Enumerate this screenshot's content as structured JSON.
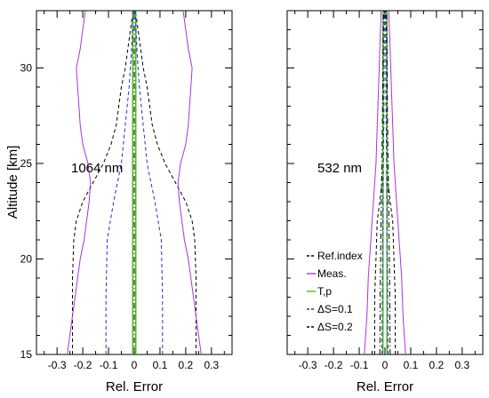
{
  "chart_data": [
    {
      "type": "line",
      "title": "",
      "annotation": "1064 nm",
      "xlabel": "Rel. Error",
      "ylabel": "Altitude [km]",
      "xlim": [
        -0.38,
        0.38
      ],
      "ylim": [
        15,
        33
      ],
      "xticks": [
        -0.3,
        -0.2,
        -0.1,
        0,
        0.1,
        0.2,
        0.3
      ],
      "xtick_labels": [
        "-0.3",
        "-0.2",
        "-0.1",
        "0",
        "0.1",
        "0.2",
        "0.3"
      ],
      "yticks": [
        15,
        20,
        25,
        30
      ],
      "ytick_labels": [
        "15",
        "20",
        "25",
        "30"
      ],
      "grid": false,
      "series": [
        {
          "name": "Ref.index",
          "color": "#000000",
          "dash": "dashed",
          "mirror": true,
          "y": [
            15,
            17,
            19,
            21,
            22,
            23,
            24,
            25,
            26,
            27,
            28,
            29,
            30,
            31,
            32,
            33
          ],
          "x": [
            0.24,
            0.24,
            0.24,
            0.235,
            0.225,
            0.2,
            0.16,
            0.12,
            0.09,
            0.07,
            0.06,
            0.05,
            0.035,
            0.025,
            0.015,
            0.005
          ]
        },
        {
          "name": "Meas.",
          "color": "#aa33dd",
          "dash": "solid",
          "mirror": true,
          "y": [
            15,
            16,
            17,
            18,
            19,
            20,
            21,
            22,
            23,
            24,
            25,
            26,
            27,
            28,
            29,
            30,
            31,
            32,
            33
          ],
          "x": [
            0.26,
            0.25,
            0.24,
            0.23,
            0.22,
            0.21,
            0.195,
            0.185,
            0.175,
            0.17,
            0.18,
            0.2,
            0.21,
            0.215,
            0.22,
            0.225,
            0.21,
            0.2,
            0.19
          ]
        },
        {
          "name": "T,p",
          "color": "#55bb22",
          "dash": "solid",
          "mirror": true,
          "y": [
            15,
            33
          ],
          "x": [
            0.006,
            0.006
          ]
        },
        {
          "name": "ΔS=0.1",
          "color": "#2233cc",
          "dash": "dashed",
          "mirror": true,
          "y": [
            15,
            18,
            21,
            23,
            25,
            27,
            29,
            31,
            33
          ],
          "x": [
            0.11,
            0.11,
            0.105,
            0.08,
            0.05,
            0.035,
            0.02,
            0.01,
            0.004
          ]
        },
        {
          "name": "ΔS=0.2",
          "color": "#000000",
          "dash": "dashdot",
          "mirror": false,
          "y": [
            15,
            33
          ],
          "x": [
            0.0,
            0.0
          ]
        }
      ]
    },
    {
      "type": "line",
      "title": "",
      "annotation": "532 nm",
      "xlabel": "Rel. Error",
      "ylabel": "",
      "xlim": [
        -0.38,
        0.38
      ],
      "ylim": [
        15,
        33
      ],
      "xticks": [
        -0.3,
        -0.2,
        -0.1,
        0,
        0.1,
        0.2,
        0.3
      ],
      "xtick_labels": [
        "-0.3",
        "-0.2",
        "-0.1",
        "0",
        "0.1",
        "0.2",
        "0.3"
      ],
      "yticks": [
        15,
        20,
        25,
        30
      ],
      "ytick_labels": [
        "",
        "",
        "",
        ""
      ],
      "grid": false,
      "legend": {
        "placement": "bottom-left",
        "entries": [
          "Ref.index",
          "Meas.",
          "T,p",
          "ΔS=0.1",
          "ΔS=0.2"
        ]
      },
      "series": [
        {
          "name": "Ref.index",
          "color": "#000000",
          "dash": "dashed",
          "mirror": true,
          "y": [
            15,
            18,
            20,
            22,
            23,
            24,
            25,
            27,
            29,
            31,
            33
          ],
          "x": [
            0.04,
            0.04,
            0.035,
            0.03,
            0.02,
            0.012,
            0.008,
            0.005,
            0.004,
            0.003,
            0.002
          ]
        },
        {
          "name": "Meas.",
          "color": "#aa33dd",
          "dash": "solid",
          "mirror": true,
          "y": [
            15,
            17,
            19,
            21,
            23,
            25,
            27,
            29,
            31,
            33
          ],
          "x": [
            0.08,
            0.07,
            0.065,
            0.055,
            0.045,
            0.035,
            0.03,
            0.025,
            0.02,
            0.015
          ]
        },
        {
          "name": "T,p",
          "color": "#55bb22",
          "dash": "solid",
          "mirror": true,
          "y": [
            15,
            33
          ],
          "x": [
            0.008,
            0.008
          ]
        },
        {
          "name": "ΔS=0.1",
          "color": "#2233cc",
          "dash": "dashed",
          "mirror": true,
          "y": [
            15,
            19,
            23,
            27,
            33
          ],
          "x": [
            0.012,
            0.01,
            0.007,
            0.005,
            0.003
          ]
        },
        {
          "name": "ΔS=0.2",
          "color": "#000000",
          "dash": "dashdot",
          "mirror": true,
          "y": [
            15,
            19,
            23,
            27,
            33
          ],
          "x": [
            0.02,
            0.018,
            0.014,
            0.01,
            0.006
          ]
        }
      ]
    }
  ]
}
